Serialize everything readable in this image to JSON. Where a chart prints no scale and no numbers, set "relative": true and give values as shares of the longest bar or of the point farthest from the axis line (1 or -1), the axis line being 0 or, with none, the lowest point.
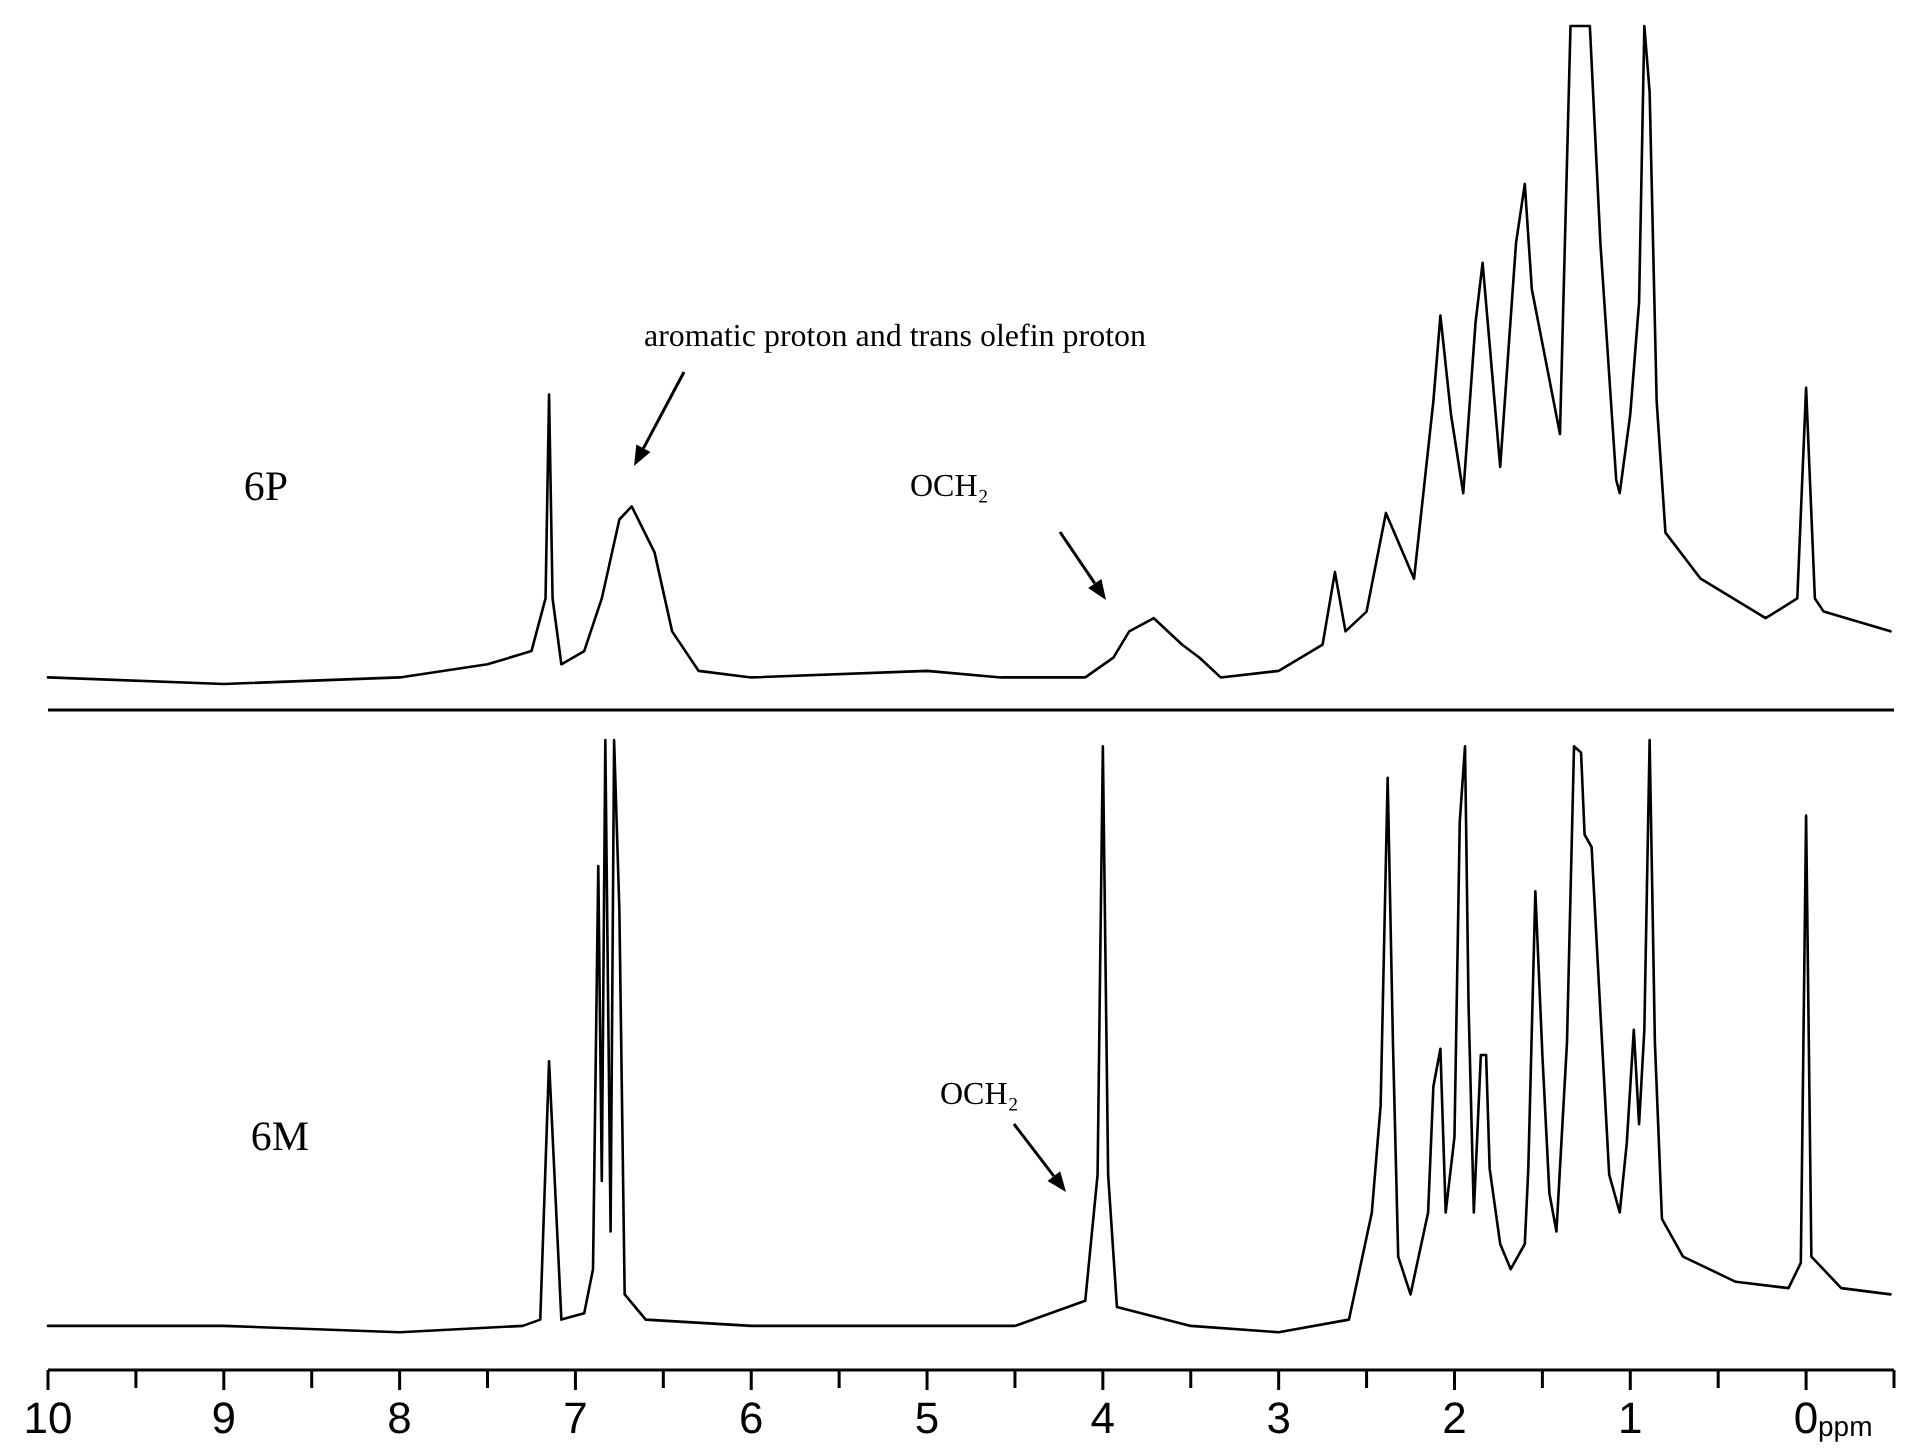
{
  "chart_data": [
    {
      "type": "line",
      "relative": true,
      "tick_labels": false,
      "xlim": [
        10,
        -0.5
      ],
      "annotations": [
        "aromatic proton and trans olefin proton",
        "OCH₂"
      ],
      "series": [
        {
          "name": "6P",
          "color": "#000000",
          "x": [
            10,
            9,
            8,
            7.5,
            7.25,
            7.17,
            7.15,
            7.13,
            7.08,
            6.95,
            6.85,
            6.75,
            6.68,
            6.55,
            6.45,
            6.3,
            6,
            5,
            4.58,
            4.1,
            3.94,
            3.85,
            3.71,
            3.55,
            3.45,
            3.33,
            3,
            2.75,
            2.68,
            2.62,
            2.5,
            2.39,
            2.23,
            2.12,
            2.08,
            2.02,
            1.95,
            1.88,
            1.84,
            1.74,
            1.65,
            1.6,
            1.56,
            1.48,
            1.4,
            1.34,
            1.23,
            1.17,
            1.08,
            1.06,
            1,
            0.95,
            0.92,
            0.89,
            0.85,
            0.8,
            0.6,
            0.23,
            0.05,
            0,
            -0.05,
            -0.1,
            -0.48
          ],
          "values": [
            0.01,
            0,
            0.01,
            0.03,
            0.05,
            0.13,
            0.44,
            0.13,
            0.03,
            0.05,
            0.13,
            0.25,
            0.27,
            0.2,
            0.08,
            0.02,
            0.01,
            0.02,
            0.01,
            0.01,
            0.04,
            0.08,
            0.1,
            0.06,
            0.04,
            0.01,
            0.02,
            0.06,
            0.17,
            0.08,
            0.11,
            0.26,
            0.16,
            0.43,
            0.56,
            0.41,
            0.29,
            0.55,
            0.64,
            0.33,
            0.67,
            0.76,
            0.6,
            0.49,
            0.38,
            1,
            1,
            0.67,
            0.31,
            0.29,
            0.41,
            0.58,
            1,
            0.9,
            0.43,
            0.23,
            0.16,
            0.1,
            0.13,
            0.45,
            0.13,
            0.11,
            0.08
          ]
        }
      ]
    },
    {
      "type": "line",
      "relative": true,
      "xlim": [
        10,
        -0.5
      ],
      "xlabel": "ppm",
      "xticks": [
        10,
        {
          "value": 9.5,
          "label": null
        },
        9,
        {
          "value": 8.5,
          "label": null
        },
        8,
        {
          "value": 7.5,
          "label": null
        },
        7,
        {
          "value": 6.5,
          "label": null
        },
        6,
        {
          "value": 5.5,
          "label": null
        },
        5,
        {
          "value": 4.5,
          "label": null
        },
        4,
        {
          "value": 3.5,
          "label": null
        },
        3,
        {
          "value": 2.5,
          "label": null
        },
        2,
        {
          "value": 1.5,
          "label": null
        },
        1,
        {
          "value": 0.5,
          "label": null
        },
        0,
        {
          "value": -0.5,
          "label": null
        }
      ],
      "annotations": [
        "OCH₂"
      ],
      "series": [
        {
          "name": "6M",
          "color": "#000000",
          "x": [
            10,
            9,
            8,
            7.3,
            7.2,
            7.15,
            7.08,
            6.95,
            6.9,
            6.87,
            6.85,
            6.83,
            6.8,
            6.78,
            6.75,
            6.72,
            6.6,
            6,
            5,
            4.5,
            4.1,
            4.03,
            4,
            3.97,
            3.92,
            3.5,
            3,
            2.6,
            2.47,
            2.42,
            2.38,
            2.35,
            2.32,
            2.25,
            2.15,
            2.12,
            2.08,
            2.05,
            2,
            1.97,
            1.94,
            1.92,
            1.89,
            1.85,
            1.82,
            1.8,
            1.74,
            1.68,
            1.6,
            1.58,
            1.54,
            1.5,
            1.46,
            1.42,
            1.36,
            1.32,
            1.28,
            1.26,
            1.22,
            1.18,
            1.12,
            1.06,
            1.02,
            0.98,
            0.95,
            0.92,
            0.89,
            0.86,
            0.82,
            0.7,
            0.4,
            0.1,
            0.03,
            0,
            -0.03,
            -0.2,
            -0.48
          ],
          "values": [
            0.07,
            0.07,
            0.06,
            0.07,
            0.08,
            0.49,
            0.08,
            0.09,
            0.16,
            0.8,
            0.3,
            1,
            0.22,
            1,
            0.73,
            0.12,
            0.08,
            0.07,
            0.07,
            0.07,
            0.11,
            0.31,
            0.99,
            0.31,
            0.1,
            0.07,
            0.06,
            0.08,
            0.25,
            0.42,
            0.94,
            0.52,
            0.18,
            0.12,
            0.25,
            0.45,
            0.51,
            0.25,
            0.37,
            0.87,
            0.99,
            0.58,
            0.25,
            0.5,
            0.5,
            0.32,
            0.2,
            0.16,
            0.2,
            0.32,
            0.76,
            0.5,
            0.28,
            0.22,
            0.52,
            0.99,
            0.98,
            0.85,
            0.83,
            0.62,
            0.31,
            0.25,
            0.36,
            0.54,
            0.39,
            0.54,
            1,
            0.52,
            0.24,
            0.18,
            0.14,
            0.13,
            0.17,
            0.88,
            0.18,
            0.13,
            0.12
          ]
        }
      ]
    }
  ]
}
